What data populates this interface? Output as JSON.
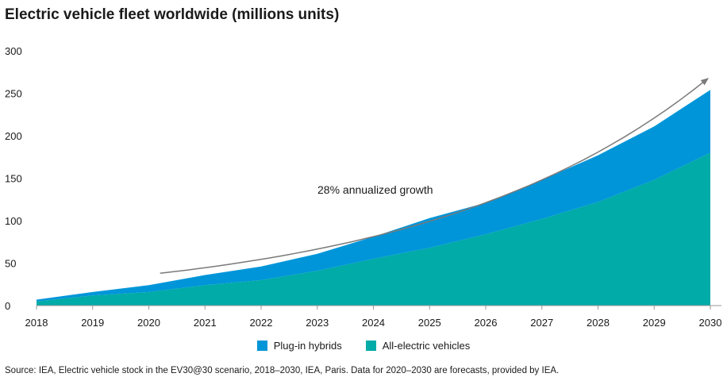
{
  "chart_data": {
    "type": "area",
    "stacked": true,
    "title": "Electric vehicle fleet worldwide (millions units)",
    "x": [
      2018,
      2019,
      2020,
      2021,
      2022,
      2023,
      2024,
      2025,
      2026,
      2027,
      2028,
      2029,
      2030
    ],
    "x_tick_labels": [
      "2018",
      "2019",
      "2020",
      "2021",
      "2022",
      "2023",
      "2024",
      "2025",
      "2026",
      "2027",
      "2028",
      "2029",
      "2030"
    ],
    "y_ticks": [
      0,
      50,
      100,
      150,
      200,
      250,
      300
    ],
    "y_tick_labels": [
      "0",
      "50",
      "100",
      "150",
      "200",
      "250",
      "300"
    ],
    "ylim": [
      0,
      300
    ],
    "series": [
      {
        "name": "All-electric vehicles",
        "color": "#00ABA8",
        "values": [
          5,
          12,
          16,
          24,
          30,
          41,
          55,
          68,
          84,
          102,
          122,
          148,
          180
        ]
      },
      {
        "name": "Plug-in hybrids",
        "color": "#0095D9",
        "values": [
          2,
          4,
          8,
          12,
          16,
          20,
          26,
          35,
          37,
          46,
          55,
          63,
          74
        ]
      }
    ],
    "legend_order": [
      "Plug-in hybrids",
      "All-electric vehicles"
    ],
    "legend_position": "bottom-center",
    "annotation": {
      "text": "28% annualized growth",
      "arrow_start_x": 2020.2,
      "arrow_start_value": 38,
      "arrow_end_value": 267
    },
    "grid": false
  },
  "source": "Source: IEA, Electric vehicle stock in the EV30@30 scenario, 2018–2030, IEA, Paris. Data for 2020–2030 are forecasts, provided by IEA."
}
